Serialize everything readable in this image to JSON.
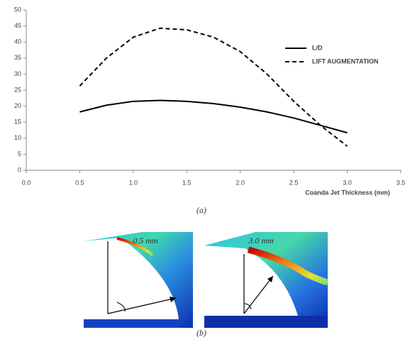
{
  "chart_data": {
    "type": "line",
    "x_label": "Coanda Jet Thickness (mm)",
    "x": [
      0.5,
      0.75,
      1.0,
      1.25,
      1.5,
      1.75,
      2.0,
      2.25,
      2.5,
      2.75,
      3.0
    ],
    "series": [
      {
        "name": "L/D",
        "color": "#000000",
        "dash": "solid",
        "values": [
          18.2,
          20.3,
          21.5,
          21.8,
          21.5,
          20.8,
          19.7,
          18.2,
          16.3,
          14.0,
          11.7
        ]
      },
      {
        "name": "LIFT AUGMENTATION",
        "color": "#000000",
        "dash": "dashed",
        "values": [
          26.3,
          35.0,
          41.5,
          44.3,
          43.8,
          41.5,
          37.0,
          30.0,
          21.5,
          14.0,
          7.5
        ]
      }
    ],
    "xlim": [
      0,
      3.5
    ],
    "xticks": [
      {
        "value": 0,
        "label": "0.0"
      },
      {
        "value": 0.5,
        "label": "0.5"
      },
      {
        "value": 1,
        "label": "1.0"
      },
      {
        "value": 1.5,
        "label": "1.5"
      },
      {
        "value": 2,
        "label": "2.0"
      },
      {
        "value": 2.5,
        "label": "2.5"
      },
      {
        "value": 3,
        "label": "3.0"
      },
      {
        "value": 3.5,
        "label": "3.5"
      }
    ],
    "ylim": [
      0,
      50
    ],
    "yticks": [
      0,
      5,
      10,
      15,
      20,
      25,
      30,
      35,
      40,
      45,
      50
    ],
    "grid": false
  },
  "figure": {
    "caption_a": "(a)",
    "caption_b": "(b)",
    "panel_labels": [
      "0.5 mm",
      "3.0 mm"
    ]
  }
}
